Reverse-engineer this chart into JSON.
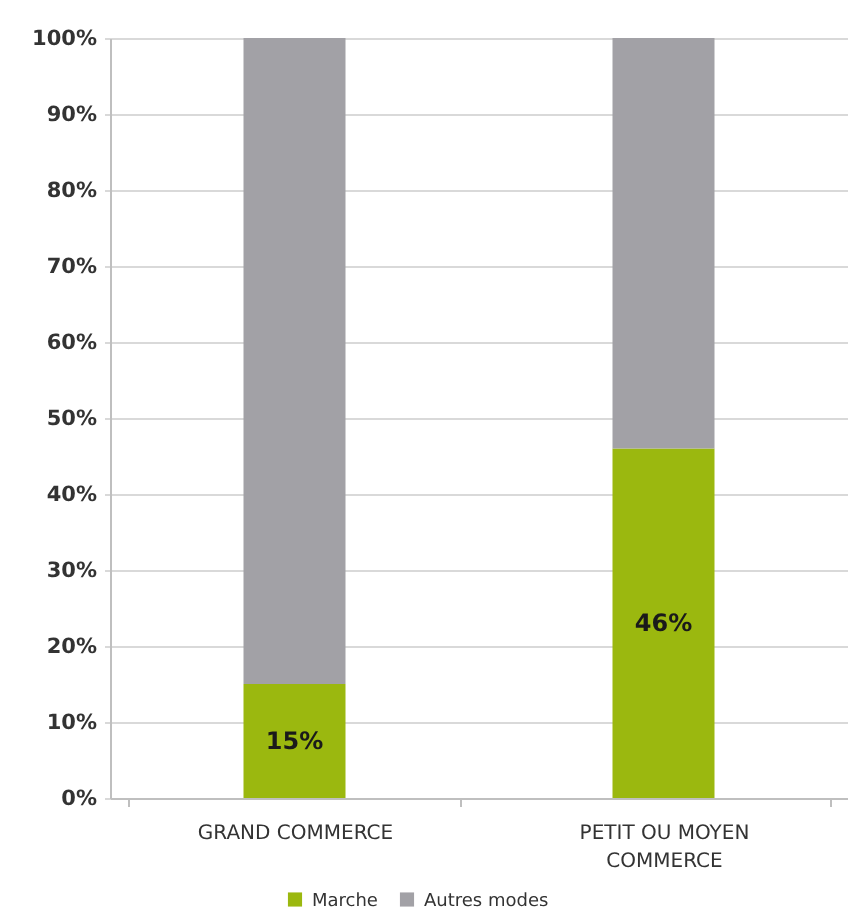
{
  "chart_data": {
    "type": "bar",
    "stacked": true,
    "categories": [
      "GRAND COMMERCE",
      "PETIT OU MOYEN COMMERCE"
    ],
    "series": [
      {
        "name": "Marche",
        "color": "#9bb80f",
        "values": [
          15,
          46
        ],
        "value_labels": [
          "15%",
          "46%"
        ]
      },
      {
        "name": "Autres modes",
        "color": "#a2a1a6",
        "values": [
          85,
          54
        ]
      }
    ],
    "ylim": [
      0,
      100
    ],
    "yticks": [
      {
        "value": 0,
        "label": "0%"
      },
      {
        "value": 10,
        "label": "10%"
      },
      {
        "value": 20,
        "label": "20%"
      },
      {
        "value": 30,
        "label": "30%"
      },
      {
        "value": 40,
        "label": "40%"
      },
      {
        "value": 50,
        "label": "50%"
      },
      {
        "value": 60,
        "label": "60%"
      },
      {
        "value": 70,
        "label": "70%"
      },
      {
        "value": 80,
        "label": "80%"
      },
      {
        "value": 90,
        "label": "90%"
      },
      {
        "value": 100,
        "label": "100%"
      }
    ],
    "grid": "y",
    "legend": "bottom"
  }
}
